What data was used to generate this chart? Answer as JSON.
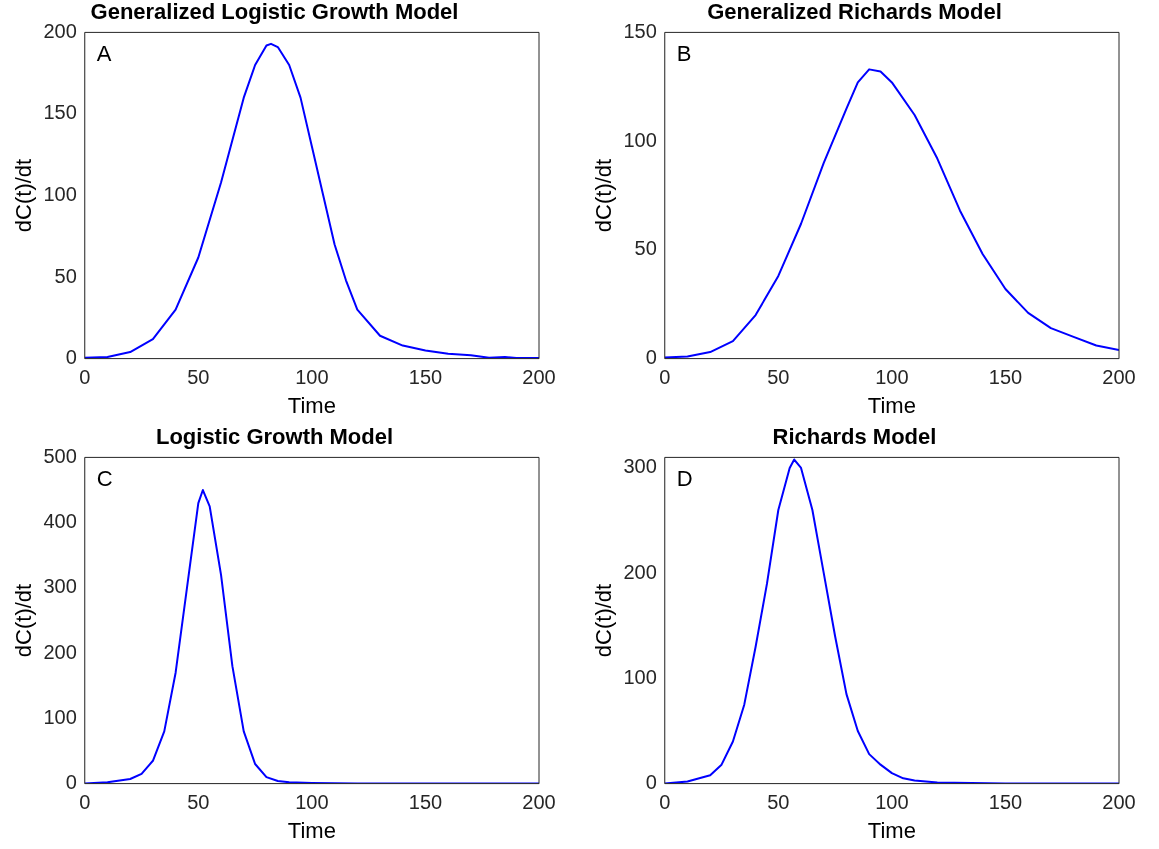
{
  "chart_data": [
    {
      "type": "line",
      "title": "Generalized Logistic Growth Model",
      "xlabel": "Time",
      "ylabel": "dC(t)/dt",
      "annotations": [
        "A"
      ],
      "grid": false,
      "legend": false,
      "xlim": [
        0,
        200
      ],
      "xticks": [
        0,
        50,
        100,
        150,
        200
      ],
      "ylim": [
        0,
        200
      ],
      "yticks": [
        0,
        50,
        100,
        150,
        200
      ],
      "series": [
        {
          "color": "#0000ff",
          "x": [
            0,
            10,
            20,
            30,
            40,
            50,
            60,
            70,
            75,
            80,
            82,
            85,
            90,
            95,
            100,
            105,
            110,
            115,
            120,
            130,
            140,
            150,
            160,
            165,
            170,
            178,
            185,
            190,
            200
          ],
          "values": [
            0.5,
            1,
            4,
            12,
            30,
            62,
            108,
            160,
            180,
            192,
            193,
            191,
            180,
            160,
            130,
            100,
            70,
            48,
            30,
            14,
            8,
            5,
            3,
            2.5,
            2,
            0.5,
            1,
            0.3,
            0.3
          ]
        }
      ]
    },
    {
      "type": "line",
      "title": "Generalized Richards Model",
      "xlabel": "Time",
      "ylabel": "dC(t)/dt",
      "annotations": [
        "B"
      ],
      "grid": false,
      "legend": false,
      "xlim": [
        0,
        200
      ],
      "xticks": [
        0,
        50,
        100,
        150,
        200
      ],
      "ylim": [
        0,
        150
      ],
      "yticks": [
        0,
        50,
        100,
        150
      ],
      "series": [
        {
          "color": "#0000ff",
          "x": [
            0,
            10,
            20,
            30,
            40,
            50,
            60,
            70,
            80,
            85,
            90,
            95,
            100,
            110,
            120,
            130,
            140,
            150,
            160,
            170,
            180,
            190,
            200
          ],
          "values": [
            0.5,
            1,
            3,
            8,
            20,
            38,
            62,
            90,
            115,
            127,
            133,
            132,
            127,
            112,
            92,
            68,
            48,
            32,
            21,
            14,
            10,
            6,
            4
          ]
        }
      ]
    },
    {
      "type": "line",
      "title": "Logistic Growth Model",
      "xlabel": "Time",
      "ylabel": "dC(t)/dt",
      "annotations": [
        "C"
      ],
      "grid": false,
      "legend": false,
      "xlim": [
        0,
        200
      ],
      "xticks": [
        0,
        50,
        100,
        150,
        200
      ],
      "ylim": [
        0,
        500
      ],
      "yticks": [
        0,
        100,
        200,
        300,
        400,
        500
      ],
      "series": [
        {
          "color": "#0000ff",
          "x": [
            0,
            10,
            20,
            25,
            30,
            35,
            40,
            45,
            50,
            52,
            55,
            60,
            65,
            70,
            75,
            80,
            85,
            90,
            100,
            120,
            150,
            200
          ],
          "values": [
            0,
            2,
            7,
            15,
            35,
            80,
            170,
            300,
            430,
            450,
            425,
            320,
            180,
            80,
            30,
            10,
            4,
            2,
            1,
            0,
            0,
            0
          ]
        }
      ]
    },
    {
      "type": "line",
      "title": "Richards Model",
      "xlabel": "Time",
      "ylabel": "dC(t)/dt",
      "annotations": [
        "D"
      ],
      "grid": false,
      "legend": false,
      "xlim": [
        0,
        200
      ],
      "xticks": [
        0,
        50,
        100,
        150,
        200
      ],
      "ylim": [
        0,
        310
      ],
      "yticks": [
        0,
        100,
        200,
        300
      ],
      "series": [
        {
          "color": "#0000ff",
          "x": [
            0,
            10,
            20,
            25,
            30,
            35,
            40,
            45,
            50,
            55,
            57,
            60,
            65,
            70,
            75,
            80,
            85,
            90,
            95,
            100,
            105,
            110,
            120,
            150,
            200
          ],
          "values": [
            0,
            2,
            8,
            18,
            40,
            75,
            130,
            190,
            260,
            300,
            308,
            300,
            260,
            200,
            140,
            85,
            50,
            28,
            18,
            10,
            5,
            3,
            1,
            0,
            0
          ]
        }
      ]
    }
  ]
}
